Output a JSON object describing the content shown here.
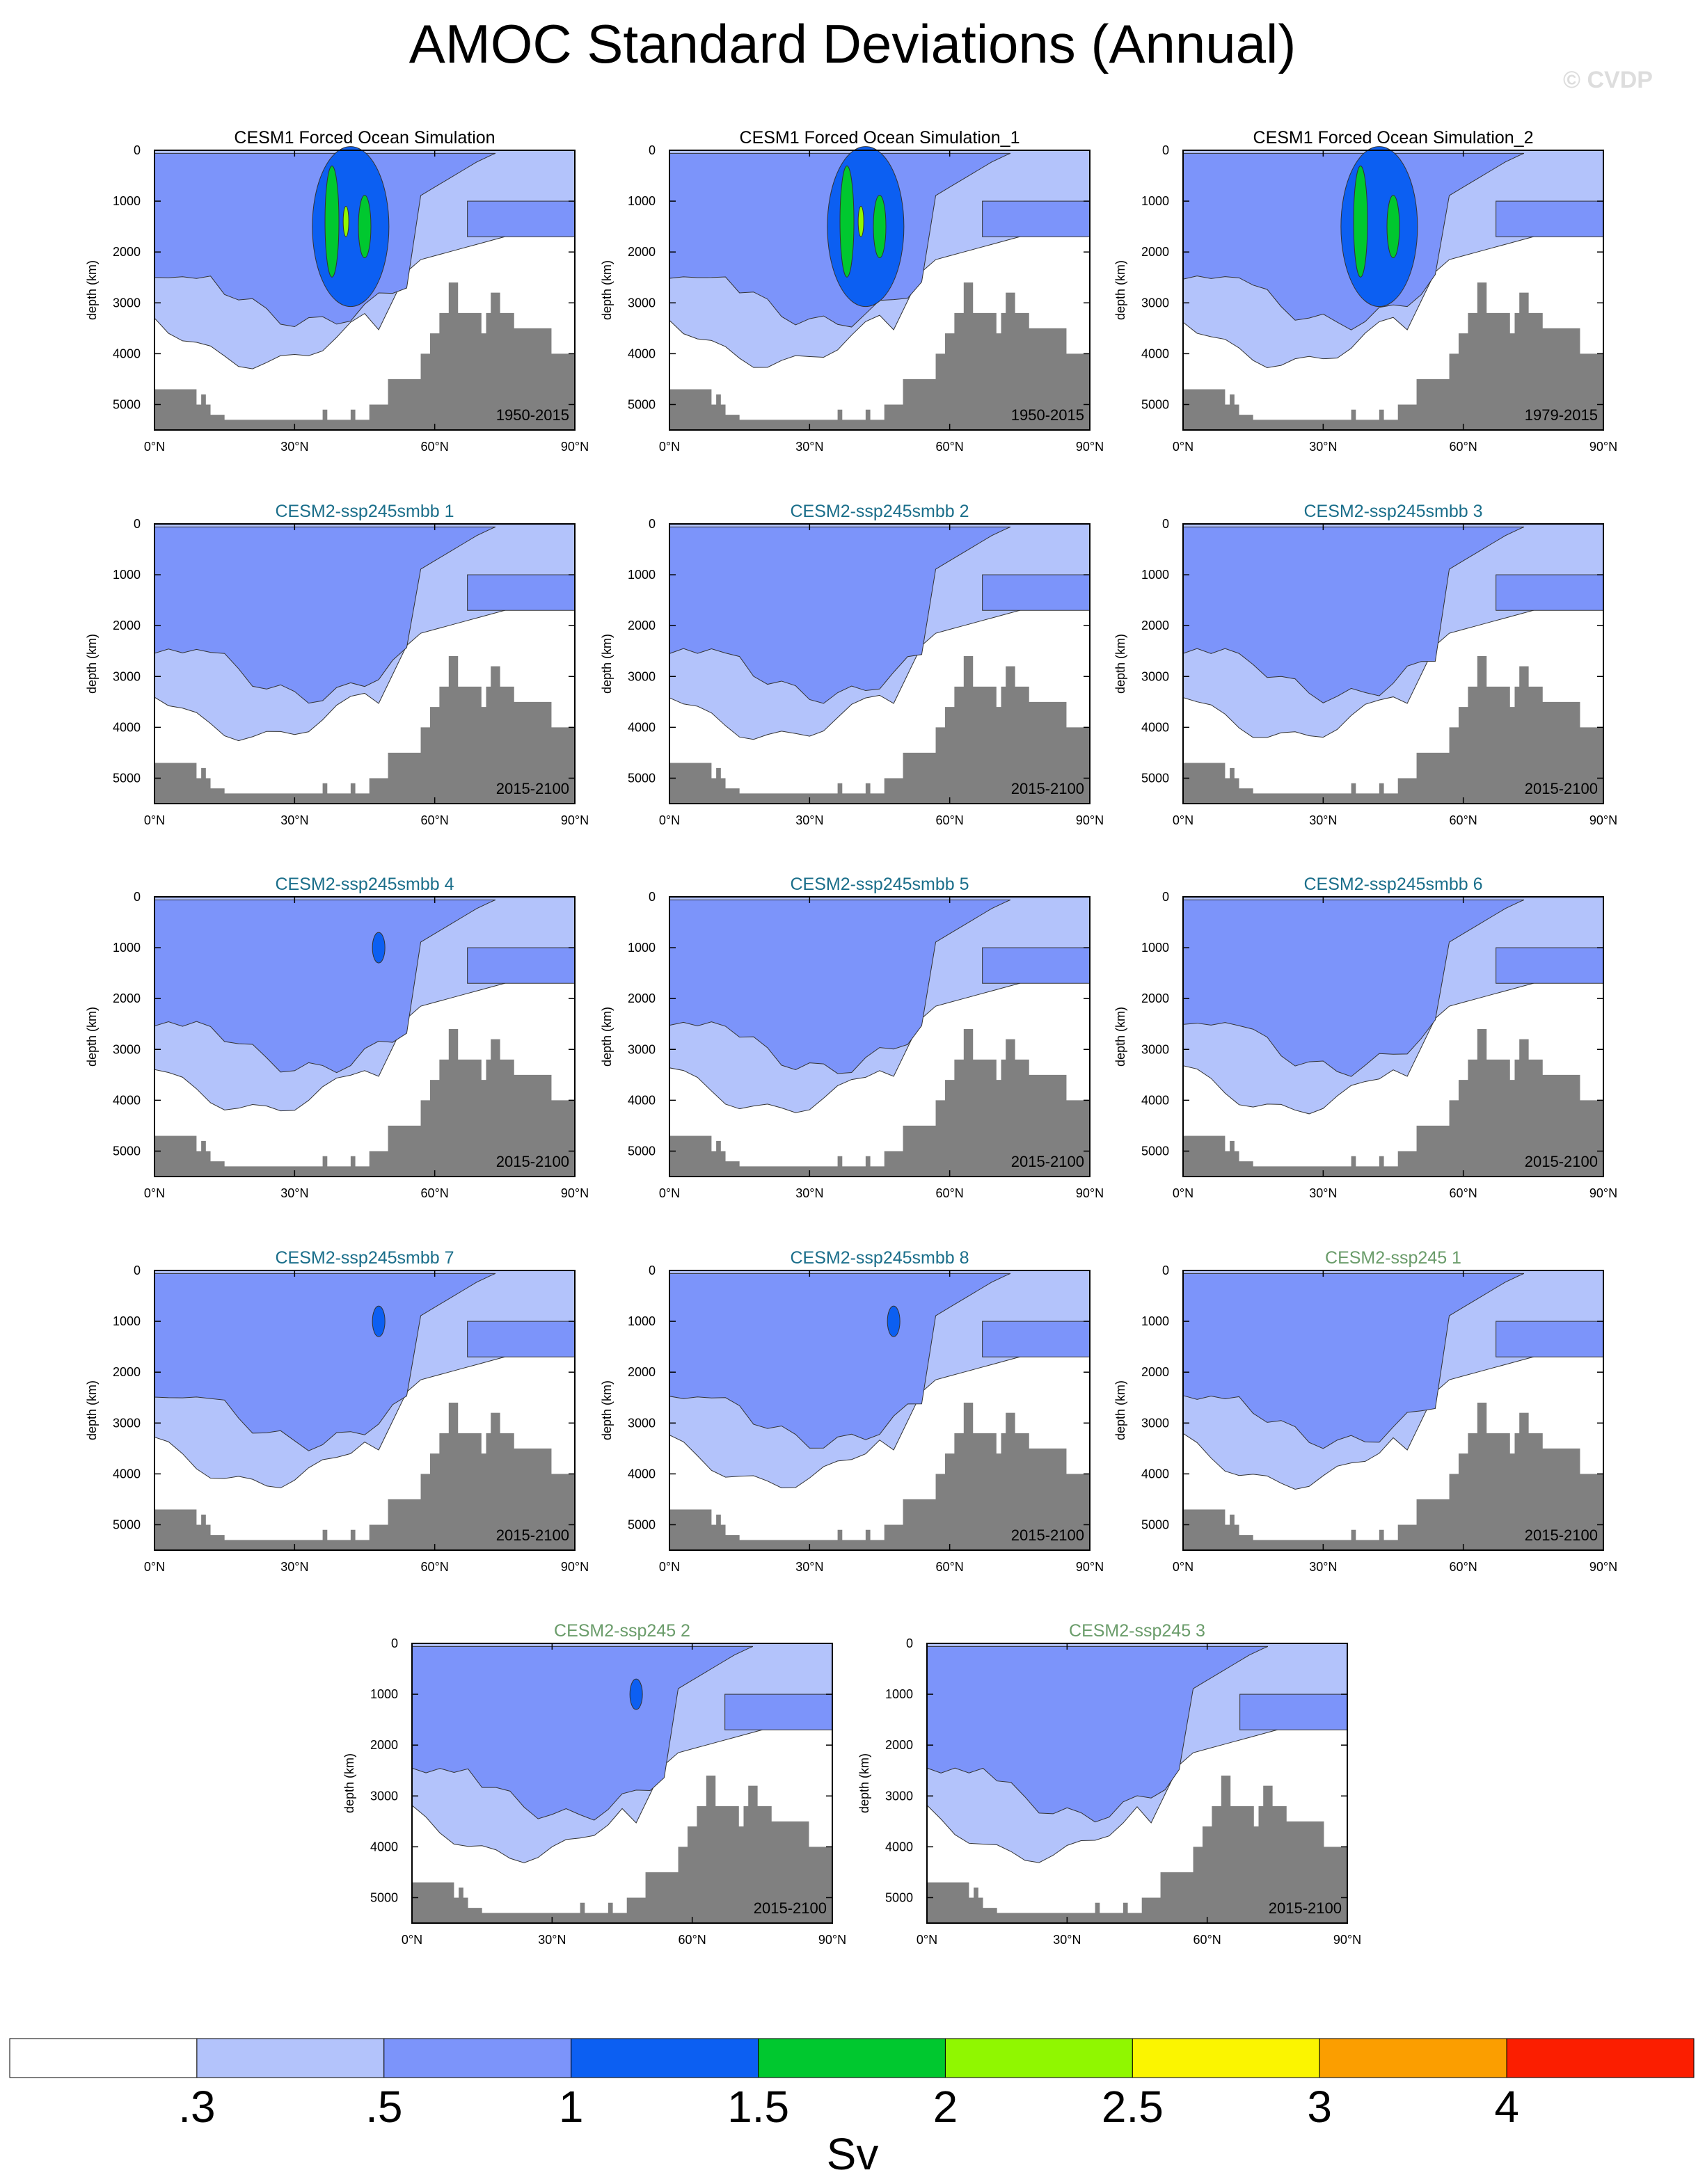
{
  "figure": {
    "title": "AMOC Standard Deviations (Annual)",
    "watermark": "© CVDP"
  },
  "chart_data": {
    "type": "contour-panels",
    "title": "AMOC Standard Deviations (Annual)",
    "xlabel": "",
    "ylabel": "depth (km)",
    "x_ticks": [
      "0°N",
      "30°N",
      "60°N",
      "90°N"
    ],
    "y_ticks": [
      "0",
      "1000",
      "2000",
      "3000",
      "4000",
      "5000"
    ],
    "xlim": [
      0,
      90
    ],
    "ylim": [
      5500,
      0
    ],
    "colorbar": {
      "unit": "Sv",
      "levels": [
        ".3",
        ".5",
        "1",
        "1.5",
        "2",
        "2.5",
        "3",
        "4"
      ],
      "colors": [
        "#ffffff",
        "#b3c3fb",
        "#7c94fa",
        "#0c5ff2",
        "#00c82f",
        "#90f700",
        "#fbf500",
        "#fb9e00",
        "#fb1e00"
      ]
    },
    "bathymetry": {
      "color": "#808080",
      "lat": [
        0,
        6,
        9,
        10,
        11,
        12,
        15,
        20,
        25,
        30,
        35,
        36,
        37,
        38,
        40,
        42,
        43,
        46,
        48,
        50,
        51,
        52,
        53,
        54,
        55,
        56,
        57,
        58,
        59,
        60,
        61,
        62,
        63,
        64,
        65,
        66,
        67,
        68,
        69,
        70,
        71,
        72,
        73,
        74,
        75,
        76,
        77,
        78,
        79,
        80,
        81,
        82,
        83,
        84,
        85,
        86,
        87,
        88,
        89,
        90
      ],
      "depth": [
        4700,
        4700,
        5000,
        4800,
        5000,
        5200,
        5300,
        5300,
        5300,
        5300,
        5300,
        5100,
        5300,
        5300,
        5300,
        5100,
        5300,
        5000,
        5000,
        4500,
        4500,
        4500,
        4500,
        4500,
        4500,
        4500,
        4000,
        4000,
        3600,
        3600,
        3200,
        3200,
        2600,
        2600,
        3200,
        3200,
        3200,
        3200,
        3200,
        3600,
        3200,
        2800,
        2800,
        3200,
        3200,
        3200,
        3500,
        3500,
        3500,
        3500,
        3500,
        3500,
        3500,
        3500,
        4000,
        4000,
        4000,
        4000,
        4000,
        4000
      ]
    },
    "panels": [
      {
        "title": "CESM1 Forced Ocean Simulation",
        "period": "1950-2015",
        "max_level": "2.5",
        "group": "obs"
      },
      {
        "title": "CESM1 Forced Ocean Simulation_1",
        "period": "1950-2015",
        "max_level": "2.5",
        "group": "obs"
      },
      {
        "title": "CESM1 Forced Ocean Simulation_2",
        "period": "1979-2015",
        "max_level": "2",
        "group": "obs"
      },
      {
        "title": "CESM2-ssp245smbb 1",
        "period": "2015-2100",
        "max_level": "1",
        "group": "smbb"
      },
      {
        "title": "CESM2-ssp245smbb 2",
        "period": "2015-2100",
        "max_level": "1",
        "group": "smbb"
      },
      {
        "title": "CESM2-ssp245smbb 3",
        "period": "2015-2100",
        "max_level": "1",
        "group": "smbb"
      },
      {
        "title": "CESM2-ssp245smbb 4",
        "period": "2015-2100",
        "max_level": "1.5",
        "group": "smbb"
      },
      {
        "title": "CESM2-ssp245smbb 5",
        "period": "2015-2100",
        "max_level": "1",
        "group": "smbb"
      },
      {
        "title": "CESM2-ssp245smbb 6",
        "period": "2015-2100",
        "max_level": "1",
        "group": "smbb"
      },
      {
        "title": "CESM2-ssp245smbb 7",
        "period": "2015-2100",
        "max_level": "1.5",
        "group": "smbb"
      },
      {
        "title": "CESM2-ssp245smbb 8",
        "period": "2015-2100",
        "max_level": "1.5",
        "group": "smbb"
      },
      {
        "title": "CESM2-ssp245 1",
        "period": "2015-2100",
        "max_level": "1",
        "group": "ssp245"
      },
      {
        "title": "CESM2-ssp245 2",
        "period": "2015-2100",
        "max_level": "1.5",
        "group": "ssp245"
      },
      {
        "title": "CESM2-ssp245 3",
        "period": "2015-2100",
        "max_level": "1",
        "group": "ssp245"
      }
    ],
    "title_colors": {
      "obs": "#000000",
      "smbb": "#1a6e8a",
      "ssp245": "#6a9c6a"
    }
  }
}
